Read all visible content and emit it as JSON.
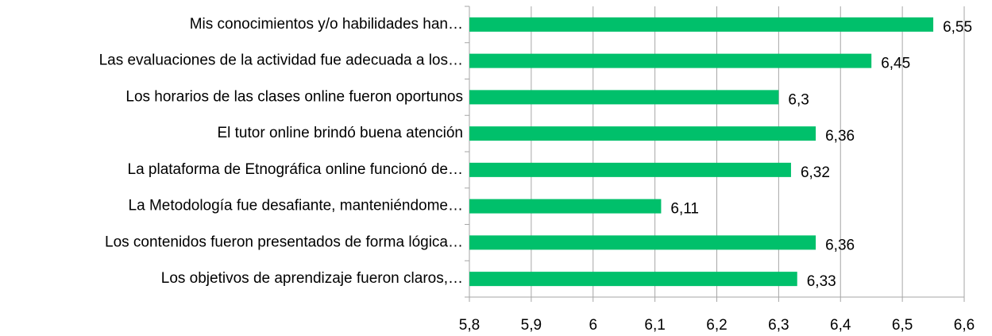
{
  "chart_data": {
    "type": "bar",
    "orientation": "horizontal",
    "categories": [
      "Mis conocimientos y/o habilidades han…",
      "Las evaluaciones de la actividad fue adecuada a los…",
      "Los horarios de las clases online fueron oportunos",
      "El tutor online brindó buena atención",
      "La plataforma de Etnográfica online funcionó de…",
      "La Metodología fue desafiante, manteniéndome…",
      "Los contenidos fueron presentados de forma lógica…",
      "Los objetivos de aprendizaje fueron claros,…"
    ],
    "values": [
      6.55,
      6.45,
      6.3,
      6.36,
      6.32,
      6.11,
      6.36,
      6.33
    ],
    "value_labels": [
      "6,55",
      "6,45",
      "6,3",
      "6,36",
      "6,32",
      "6,11",
      "6,36",
      "6,33"
    ],
    "color": "#00c06b",
    "xlim": [
      5.8,
      6.6
    ],
    "xticks": [
      {
        "value": 5.8,
        "label": "5,8"
      },
      {
        "value": 5.9,
        "label": "5,9"
      },
      6,
      {
        "value": 6.1,
        "label": "6,1"
      },
      {
        "value": 6.2,
        "label": "6,2"
      },
      {
        "value": 6.3,
        "label": "6,3"
      },
      {
        "value": 6.4,
        "label": "6,4"
      },
      {
        "value": 6.5,
        "label": "6,5"
      },
      {
        "value": 6.6,
        "label": "6,6"
      }
    ],
    "grid": true
  }
}
